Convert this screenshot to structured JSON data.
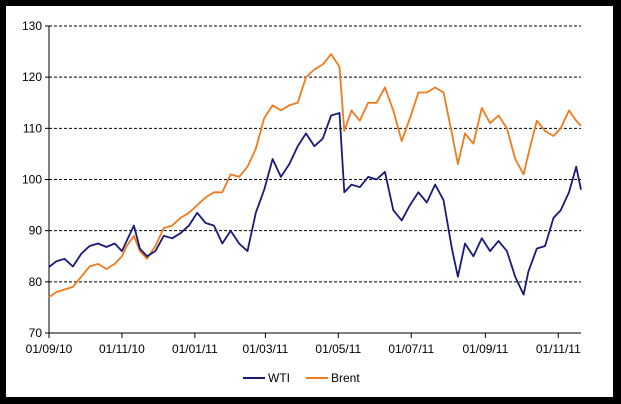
{
  "chart_data": {
    "type": "line",
    "title": "",
    "xlabel": "",
    "ylabel": "",
    "ylim": [
      70,
      130
    ],
    "y_ticks": [
      70,
      80,
      90,
      100,
      110,
      120,
      130
    ],
    "x_range": [
      "2010-09-01",
      "2011-11-20"
    ],
    "x_tick_dates": [
      "2010-09-01",
      "2010-11-01",
      "2011-01-01",
      "2011-03-01",
      "2011-05-01",
      "2011-07-01",
      "2011-09-01",
      "2011-11-01"
    ],
    "x_tick_labels": [
      "01/09/10",
      "01/11/10",
      "01/01/11",
      "01/03/11",
      "01/05/11",
      "01/07/11",
      "01/09/11",
      "01/11/11"
    ],
    "grid": "horizontal dashed",
    "legend_placement": "bottom-center",
    "series": [
      {
        "name": "WTI",
        "color": "#1a1a7a",
        "points": [
          [
            "2010-09-01",
            82.9
          ],
          [
            "2010-09-07",
            84.0
          ],
          [
            "2010-09-14",
            84.5
          ],
          [
            "2010-09-21",
            83.0
          ],
          [
            "2010-09-28",
            85.5
          ],
          [
            "2010-10-05",
            87.0
          ],
          [
            "2010-10-12",
            87.5
          ],
          [
            "2010-10-19",
            86.8
          ],
          [
            "2010-10-26",
            87.5
          ],
          [
            "2010-11-01",
            86.0
          ],
          [
            "2010-11-05",
            88.0
          ],
          [
            "2010-11-11",
            91.0
          ],
          [
            "2010-11-16",
            86.5
          ],
          [
            "2010-11-22",
            85.0
          ],
          [
            "2010-11-29",
            86.0
          ],
          [
            "2010-12-06",
            89.0
          ],
          [
            "2010-12-13",
            88.5
          ],
          [
            "2010-12-20",
            89.5
          ],
          [
            "2010-12-27",
            91.0
          ],
          [
            "2011-01-03",
            93.5
          ],
          [
            "2011-01-10",
            91.5
          ],
          [
            "2011-01-17",
            91.0
          ],
          [
            "2011-01-24",
            87.5
          ],
          [
            "2011-01-31",
            90.0
          ],
          [
            "2011-02-07",
            87.5
          ],
          [
            "2011-02-14",
            86.0
          ],
          [
            "2011-02-21",
            93.5
          ],
          [
            "2011-02-28",
            98.0
          ],
          [
            "2011-03-07",
            104.0
          ],
          [
            "2011-03-14",
            100.5
          ],
          [
            "2011-03-21",
            103.0
          ],
          [
            "2011-03-28",
            106.5
          ],
          [
            "2011-04-04",
            109.0
          ],
          [
            "2011-04-11",
            106.5
          ],
          [
            "2011-04-18",
            108.0
          ],
          [
            "2011-04-25",
            112.5
          ],
          [
            "2011-05-02",
            113.0
          ],
          [
            "2011-05-06",
            97.5
          ],
          [
            "2011-05-12",
            99.0
          ],
          [
            "2011-05-19",
            98.5
          ],
          [
            "2011-05-26",
            100.5
          ],
          [
            "2011-06-02",
            100.0
          ],
          [
            "2011-06-09",
            101.5
          ],
          [
            "2011-06-16",
            94.0
          ],
          [
            "2011-06-23",
            92.0
          ],
          [
            "2011-06-30",
            95.0
          ],
          [
            "2011-07-07",
            97.5
          ],
          [
            "2011-07-14",
            95.5
          ],
          [
            "2011-07-21",
            99.0
          ],
          [
            "2011-07-28",
            96.0
          ],
          [
            "2011-08-04",
            86.5
          ],
          [
            "2011-08-09",
            81.0
          ],
          [
            "2011-08-15",
            87.5
          ],
          [
            "2011-08-22",
            85.0
          ],
          [
            "2011-08-29",
            88.5
          ],
          [
            "2011-09-05",
            86.0
          ],
          [
            "2011-09-12",
            88.0
          ],
          [
            "2011-09-19",
            86.0
          ],
          [
            "2011-09-26",
            81.0
          ],
          [
            "2011-10-03",
            77.5
          ],
          [
            "2011-10-07",
            82.0
          ],
          [
            "2011-10-14",
            86.5
          ],
          [
            "2011-10-21",
            87.0
          ],
          [
            "2011-10-28",
            92.5
          ],
          [
            "2011-11-03",
            94.0
          ],
          [
            "2011-11-10",
            97.5
          ],
          [
            "2011-11-16",
            102.5
          ],
          [
            "2011-11-20",
            98.0
          ]
        ]
      },
      {
        "name": "Brent",
        "color": "#f07b1e",
        "points": [
          [
            "2010-09-01",
            77.0
          ],
          [
            "2010-09-07",
            78.0
          ],
          [
            "2010-09-14",
            78.5
          ],
          [
            "2010-09-21",
            79.0
          ],
          [
            "2010-09-28",
            81.0
          ],
          [
            "2010-10-05",
            83.0
          ],
          [
            "2010-10-12",
            83.5
          ],
          [
            "2010-10-19",
            82.5
          ],
          [
            "2010-10-26",
            83.5
          ],
          [
            "2010-11-01",
            85.0
          ],
          [
            "2010-11-05",
            87.0
          ],
          [
            "2010-11-11",
            89.0
          ],
          [
            "2010-11-16",
            86.0
          ],
          [
            "2010-11-22",
            84.5
          ],
          [
            "2010-11-29",
            87.0
          ],
          [
            "2010-12-06",
            90.5
          ],
          [
            "2010-12-13",
            91.0
          ],
          [
            "2010-12-20",
            92.5
          ],
          [
            "2010-12-27",
            93.5
          ],
          [
            "2011-01-03",
            95.0
          ],
          [
            "2011-01-10",
            96.5
          ],
          [
            "2011-01-17",
            97.5
          ],
          [
            "2011-01-24",
            97.5
          ],
          [
            "2011-01-31",
            101.0
          ],
          [
            "2011-02-07",
            100.5
          ],
          [
            "2011-02-14",
            102.5
          ],
          [
            "2011-02-21",
            106.0
          ],
          [
            "2011-02-28",
            112.0
          ],
          [
            "2011-03-07",
            114.5
          ],
          [
            "2011-03-14",
            113.5
          ],
          [
            "2011-03-21",
            114.5
          ],
          [
            "2011-03-28",
            115.0
          ],
          [
            "2011-04-04",
            120.0
          ],
          [
            "2011-04-11",
            121.5
          ],
          [
            "2011-04-18",
            122.5
          ],
          [
            "2011-04-25",
            124.5
          ],
          [
            "2011-05-02",
            122.0
          ],
          [
            "2011-05-06",
            109.5
          ],
          [
            "2011-05-12",
            113.5
          ],
          [
            "2011-05-19",
            111.5
          ],
          [
            "2011-05-26",
            115.0
          ],
          [
            "2011-06-02",
            115.0
          ],
          [
            "2011-06-09",
            118.0
          ],
          [
            "2011-06-16",
            113.5
          ],
          [
            "2011-06-23",
            107.5
          ],
          [
            "2011-06-30",
            112.0
          ],
          [
            "2011-07-07",
            117.0
          ],
          [
            "2011-07-14",
            117.0
          ],
          [
            "2011-07-21",
            118.0
          ],
          [
            "2011-07-28",
            117.0
          ],
          [
            "2011-08-04",
            109.0
          ],
          [
            "2011-08-09",
            103.0
          ],
          [
            "2011-08-15",
            109.0
          ],
          [
            "2011-08-22",
            107.0
          ],
          [
            "2011-08-29",
            114.0
          ],
          [
            "2011-09-05",
            111.0
          ],
          [
            "2011-09-12",
            112.5
          ],
          [
            "2011-09-19",
            110.0
          ],
          [
            "2011-09-26",
            104.0
          ],
          [
            "2011-10-03",
            101.0
          ],
          [
            "2011-10-07",
            105.0
          ],
          [
            "2011-10-14",
            111.5
          ],
          [
            "2011-10-21",
            109.5
          ],
          [
            "2011-10-28",
            108.5
          ],
          [
            "2011-11-03",
            110.0
          ],
          [
            "2011-11-10",
            113.5
          ],
          [
            "2011-11-16",
            111.5
          ],
          [
            "2011-11-20",
            110.5
          ]
        ]
      }
    ]
  }
}
